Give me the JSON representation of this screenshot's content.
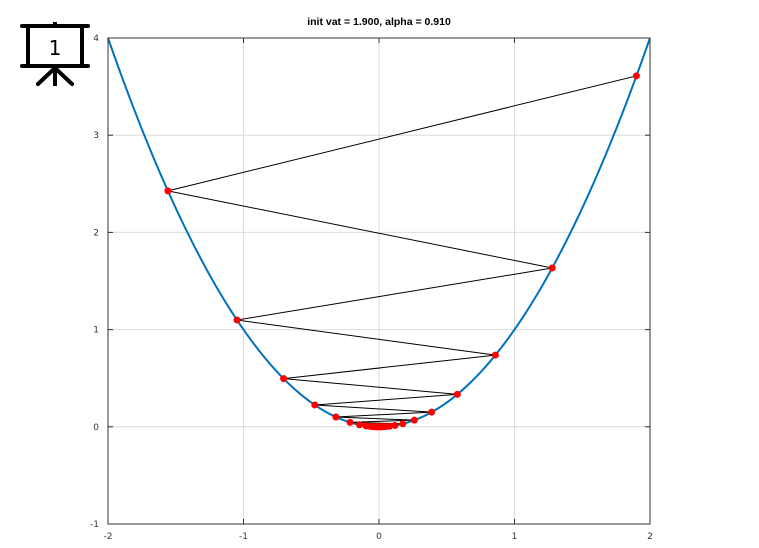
{
  "icon": {
    "name": "presentation-board-icon",
    "label": "1"
  },
  "chart_data": {
    "type": "line",
    "title": "init vat = 1.900, alpha = 0.910",
    "xlabel": "",
    "ylabel": "",
    "xlim": [
      -2,
      2
    ],
    "ylim": [
      -1,
      4
    ],
    "xticks": [
      -2,
      -1,
      0,
      1,
      2
    ],
    "yticks": [
      -1,
      0,
      1,
      2,
      3,
      4
    ],
    "grid": true,
    "curve": {
      "function": "y = x^2",
      "color": "#0072bd"
    },
    "iterates": {
      "color_points": "#ff0000",
      "color_path": "#000000",
      "x": [
        1.9,
        -1.558,
        1.278,
        -1.048,
        0.859,
        -0.704,
        0.578,
        -0.474,
        0.388,
        -0.318,
        0.261,
        -0.214,
        0.176,
        -0.144,
        0.118,
        -0.097,
        0.079,
        -0.065,
        0.053,
        -0.044,
        0.036,
        -0.029,
        0.024,
        -0.02,
        0.016,
        -0.013,
        0.011,
        -0.009,
        0.007,
        -0.006
      ]
    }
  }
}
